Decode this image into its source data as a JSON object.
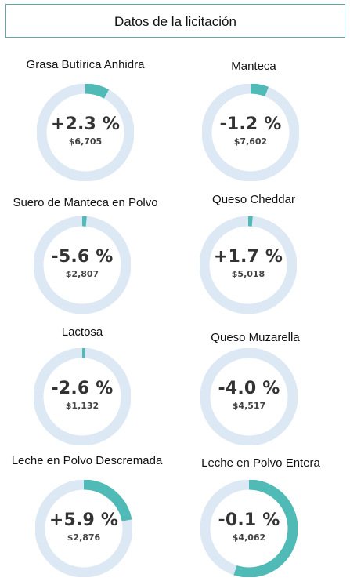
{
  "header": {
    "title": "Datos de la licitación"
  },
  "colors": {
    "track": "#dde8f5",
    "fill": "#4fbab6",
    "border": "#5fa8a6"
  },
  "products": [
    {
      "name": "Grasa Butírica Anhidra",
      "change": "+2.3 %",
      "price": "$6,705",
      "fill_fraction": 0.08
    },
    {
      "name": "Manteca",
      "change": "-1.2 %",
      "price": "$7,602",
      "fill_fraction": 0.06
    },
    {
      "name": "Suero de Manteca en Polvo",
      "change": "-5.6 %",
      "price": "$2,807",
      "fill_fraction": 0.015
    },
    {
      "name": "Queso Cheddar",
      "change": "+1.7 %",
      "price": "$5,018",
      "fill_fraction": 0.015
    },
    {
      "name": "Lactosa",
      "change": "-2.6 %",
      "price": "$1,132",
      "fill_fraction": 0.01
    },
    {
      "name": "Queso Muzarella",
      "change": "-4.0 %",
      "price": "$4,517",
      "fill_fraction": 0.0
    },
    {
      "name": "Leche en Polvo Descremada",
      "change": "+5.9 %",
      "price": "$2,876",
      "fill_fraction": 0.22
    },
    {
      "name": "Leche en Polvo Entera",
      "change": "-0.1 %",
      "price": "$4,062",
      "fill_fraction": 0.55
    }
  ]
}
